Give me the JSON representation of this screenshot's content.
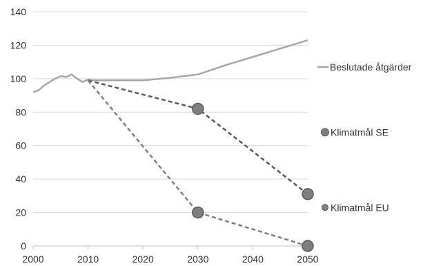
{
  "chart_data": {
    "type": "line",
    "title": "",
    "xlabel": "",
    "ylabel": "",
    "xlim": [
      2000,
      2050
    ],
    "ylim": [
      0,
      140
    ],
    "x_ticks": [
      2000,
      2010,
      2020,
      2030,
      2040,
      2050
    ],
    "y_ticks": [
      0,
      20,
      40,
      60,
      80,
      100,
      120,
      140
    ],
    "grid": "horizontal",
    "legend_position": "right",
    "series": [
      {
        "name": "Beslutade åtgärder",
        "style": "solid",
        "color": "#a6a6a6",
        "x": [
          2000,
          2001,
          2002,
          2003,
          2004,
          2005,
          2006,
          2007,
          2008,
          2009,
          2010,
          2011,
          2015,
          2020,
          2025,
          2030,
          2035,
          2040,
          2045,
          2050
        ],
        "y": [
          92,
          93,
          96,
          98,
          100,
          101.5,
          101,
          102.5,
          100,
          98,
          99.5,
          99,
          99,
          99,
          100.5,
          102.5,
          108,
          113,
          118,
          123
        ]
      },
      {
        "name": "Klimatmål SE",
        "style": "dashed",
        "color": "#595959",
        "marker_color": "#7f7f7f",
        "x": [
          2010,
          2030,
          2050
        ],
        "y": [
          99,
          82,
          31
        ],
        "markers": [
          2030,
          2050
        ]
      },
      {
        "name": "Klimatmål EU",
        "style": "dashed",
        "color": "#7f7f7f",
        "marker_color": "#7f7f7f",
        "x": [
          2010,
          2030,
          2050
        ],
        "y": [
          99,
          20,
          0
        ],
        "markers": [
          2030,
          2050
        ]
      }
    ]
  }
}
